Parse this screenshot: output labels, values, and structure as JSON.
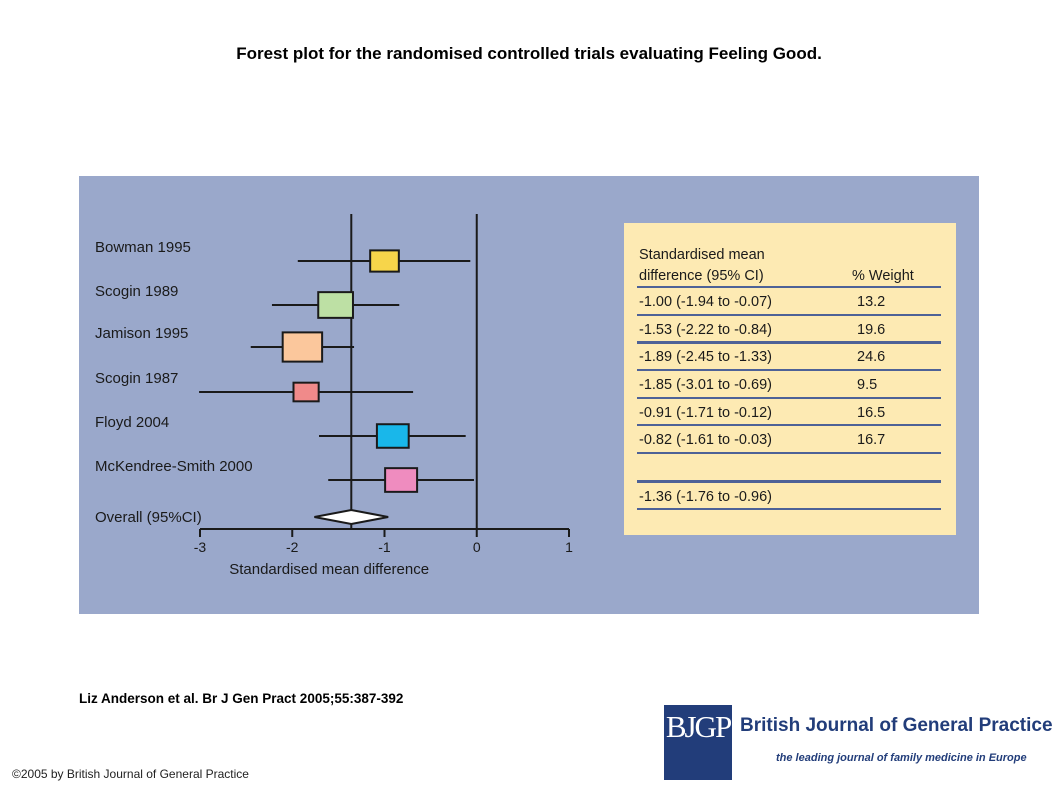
{
  "title": "Forest plot for the randomised controlled trials evaluating Feeling Good.",
  "citation": "Liz Anderson et al. Br J Gen Pract 2005;55:387-392",
  "copyright": "©2005 by British Journal of General Practice",
  "logo": {
    "mark": "BJGP",
    "name": "British Journal of General Practice",
    "tagline": "the leading journal of family medicine in Europe"
  },
  "colors": {
    "panel_bg": "#9aa8cb",
    "table_bg": "#fdeab3",
    "rule": "#4e6297",
    "brand": "#223d7a"
  },
  "chart_data": {
    "type": "forest",
    "xlabel": "Standardised mean difference",
    "xlim": [
      -3,
      1
    ],
    "xticks": [
      -3,
      -2,
      -1,
      0,
      1
    ],
    "reference_line": 0,
    "overall_line": -1.36,
    "table_header": {
      "smd_line1": "Standardised mean",
      "smd_line2": "difference (95% CI)",
      "weight": "% Weight"
    },
    "studies": [
      {
        "label": "Bowman 1995",
        "smd": -1.0,
        "lower": -1.94,
        "upper": -0.07,
        "ci_text": "-1.00 (-1.94 to -0.07)",
        "weight": "13.2",
        "color": "#f7d54a"
      },
      {
        "label": "Scogin 1989",
        "smd": -1.53,
        "lower": -2.22,
        "upper": -0.84,
        "ci_text": "-1.53 (-2.22 to -0.84)",
        "weight": "19.6",
        "color": "#bde0a4"
      },
      {
        "label": "Jamison 1995",
        "smd": -1.89,
        "lower": -2.45,
        "upper": -1.33,
        "ci_text": "-1.89 (-2.45 to -1.33)",
        "weight": "24.6",
        "color": "#fbc79c"
      },
      {
        "label": "Scogin 1987",
        "smd": -1.85,
        "lower": -3.01,
        "upper": -0.69,
        "ci_text": "-1.85 (-3.01 to -0.69)",
        "weight": "9.5",
        "color": "#f08a8a"
      },
      {
        "label": "Floyd 2004",
        "smd": -0.91,
        "lower": -1.71,
        "upper": -0.12,
        "ci_text": "-0.91 (-1.71 to -0.12)",
        "weight": "16.5",
        "color": "#19b7ea"
      },
      {
        "label": "McKendree-Smith 2000",
        "smd": -0.82,
        "lower": -1.61,
        "upper": -0.03,
        "ci_text": "-0.82 (-1.61 to -0.03)",
        "weight": "16.7",
        "color": "#ef8cbf"
      }
    ],
    "overall": {
      "label": "Overall (95%CI)",
      "smd": -1.36,
      "lower": -1.76,
      "upper": -0.96,
      "ci_text": "-1.36 (-1.76 to -0.96)"
    }
  }
}
